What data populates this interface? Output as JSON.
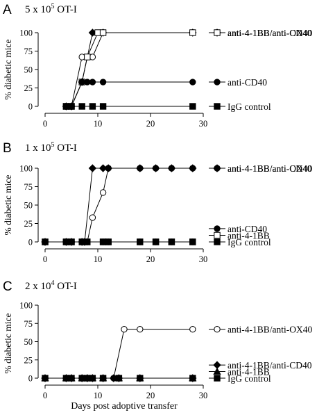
{
  "chart_data": [
    {
      "type": "line",
      "panel": "A",
      "title_prefix": "5  x 10",
      "title_exp": "5",
      "title_suffix": " OT-I",
      "ylabel": "% diabetic mice",
      "xlabel": "",
      "xlim": [
        0,
        30
      ],
      "ylim": [
        0,
        100
      ],
      "xticks": [
        0,
        10,
        20,
        30
      ],
      "yticks": [
        0,
        25,
        50,
        75,
        100
      ],
      "series": [
        {
          "name": "anti-4-1BB/anti-OX40",
          "marker": "circle-open",
          "x": [
            4,
            5,
            7,
            8,
            9,
            11,
            28
          ],
          "y": [
            0,
            0,
            67,
            67,
            67,
            100,
            100
          ]
        },
        {
          "name": "anti-4-1BB/anti-CD40",
          "marker": "diamond-filled",
          "x": [
            4,
            5,
            7,
            9,
            11,
            28
          ],
          "y": [
            0,
            0,
            33,
            100,
            100,
            100
          ]
        },
        {
          "name": "anti-4-1BB",
          "marker": "square-open",
          "x": [
            4,
            5,
            7,
            8,
            10,
            11,
            28
          ],
          "y": [
            0,
            0,
            33,
            67,
            100,
            100,
            100
          ]
        },
        {
          "name": "anti-CD40",
          "marker": "circle-filled",
          "x": [
            4,
            5,
            7,
            8,
            9,
            11,
            28
          ],
          "y": [
            0,
            0,
            33,
            33,
            33,
            33,
            33
          ]
        },
        {
          "name": "IgG control",
          "marker": "square-filled",
          "x": [
            4,
            5,
            7,
            9,
            11,
            28
          ],
          "y": [
            0,
            0,
            0,
            0,
            0,
            0
          ]
        }
      ],
      "legend": [
        {
          "name": "anti-4-1BB/anti-OX40",
          "marker": "circle-open",
          "y": 100
        },
        {
          "name": "anti-4-1BB/anti-CD40",
          "marker": "diamond-filled",
          "y": 100
        },
        {
          "name": "anti-4-1BB",
          "marker": "square-open",
          "y": 100
        },
        {
          "name": "anti-CD40",
          "marker": "circle-filled",
          "y": 33
        },
        {
          "name": "IgG control",
          "marker": "square-filled",
          "y": 0
        }
      ]
    },
    {
      "type": "line",
      "panel": "B",
      "title_prefix": "1  x 10",
      "title_exp": "5",
      "title_suffix": " OT-I",
      "ylabel": "% diabetic mice",
      "xlabel": "",
      "xlim": [
        0,
        30
      ],
      "ylim": [
        0,
        100
      ],
      "xticks": [
        0,
        10,
        20,
        30
      ],
      "yticks": [
        0,
        25,
        50,
        75,
        100
      ],
      "series": [
        {
          "name": "anti-4-1BB/anti-OX40",
          "marker": "circle-open",
          "x": [
            0,
            4,
            5,
            7,
            7.5,
            8,
            9,
            11,
            12,
            18,
            21,
            24,
            28
          ],
          "y": [
            0,
            0,
            0,
            0,
            0,
            0,
            33,
            67,
            100,
            100,
            100,
            100,
            100
          ]
        },
        {
          "name": "anti-4-1BB/anti-CD40",
          "marker": "diamond-filled",
          "x": [
            0,
            4,
            5,
            7,
            7.5,
            9,
            11,
            12,
            18,
            21,
            24,
            28
          ],
          "y": [
            0,
            0,
            0,
            0,
            0,
            100,
            100,
            100,
            100,
            100,
            100,
            100
          ]
        },
        {
          "name": "anti-CD40",
          "marker": "circle-filled",
          "x": [
            0,
            4,
            5,
            7,
            8,
            11,
            12,
            18,
            21,
            24,
            28
          ],
          "y": [
            0,
            0,
            0,
            0,
            0,
            0,
            0,
            0,
            0,
            0,
            0
          ]
        },
        {
          "name": "anti-4-1BB",
          "marker": "square-open",
          "x": [
            0,
            4,
            5,
            7,
            8,
            11,
            12,
            18,
            21,
            24,
            28
          ],
          "y": [
            0,
            0,
            0,
            0,
            0,
            0,
            0,
            0,
            0,
            0,
            0
          ]
        },
        {
          "name": "IgG control",
          "marker": "square-filled",
          "x": [
            0,
            4,
            5,
            7,
            8,
            11,
            12,
            18,
            21,
            24,
            28
          ],
          "y": [
            0,
            0,
            0,
            0,
            0,
            0,
            0,
            0,
            0,
            0,
            0
          ]
        }
      ],
      "legend": [
        {
          "name": "anti-4-1BB/anti-OX40",
          "marker": "circle-open",
          "y": 100
        },
        {
          "name": "anti-4-1BB/anti-CD40",
          "marker": "diamond-filled",
          "y": 100
        },
        {
          "name": "anti-CD40",
          "marker": "circle-filled",
          "y": 18
        },
        {
          "name": "anti-4-1BB",
          "marker": "square-open",
          "y": 9
        },
        {
          "name": "IgG control",
          "marker": "square-filled",
          "y": 0
        }
      ]
    },
    {
      "type": "line",
      "panel": "C",
      "title_prefix": "2  x 10",
      "title_exp": "4",
      "title_suffix": " OT-I",
      "ylabel": "% diabetic mice",
      "xlabel": "Days post adoptive transfer",
      "xlim": [
        0,
        30
      ],
      "ylim": [
        0,
        100
      ],
      "xticks": [
        0,
        10,
        20,
        30
      ],
      "yticks": [
        0,
        25,
        50,
        75,
        100
      ],
      "series": [
        {
          "name": "anti-4-1BB/anti-OX40",
          "marker": "circle-open",
          "x": [
            0,
            4,
            5,
            7,
            8,
            9,
            11,
            13,
            15,
            18,
            28
          ],
          "y": [
            0,
            0,
            0,
            0,
            0,
            0,
            0,
            0,
            67,
            67,
            67
          ]
        },
        {
          "name": "anti-4-1BB/anti-CD40",
          "marker": "diamond-filled",
          "x": [
            0,
            4,
            5,
            7,
            8,
            9,
            11,
            13,
            14,
            18,
            28
          ],
          "y": [
            0,
            0,
            0,
            0,
            0,
            0,
            0,
            0,
            0,
            0,
            0
          ]
        },
        {
          "name": "anti-4-1BB",
          "marker": "triangle-filled",
          "x": [
            0,
            4,
            5,
            7,
            8,
            9,
            11,
            14,
            18,
            28
          ],
          "y": [
            0,
            0,
            0,
            0,
            0,
            0,
            0,
            0,
            0,
            0
          ]
        },
        {
          "name": "IgG control",
          "marker": "square-filled",
          "x": [
            0,
            4,
            5,
            7,
            8,
            9,
            11,
            14,
            18,
            28
          ],
          "y": [
            0,
            0,
            0,
            0,
            0,
            0,
            0,
            0,
            0,
            0
          ]
        }
      ],
      "legend": [
        {
          "name": "anti-4-1BB/anti-OX40",
          "marker": "circle-open",
          "y": 67
        },
        {
          "name": "anti-4-1BB/anti-CD40",
          "marker": "diamond-filled",
          "y": 18
        },
        {
          "name": "anti-4-1BB",
          "marker": "triangle-filled",
          "y": 9
        },
        {
          "name": "IgG control",
          "marker": "square-filled",
          "y": 0
        }
      ]
    }
  ]
}
